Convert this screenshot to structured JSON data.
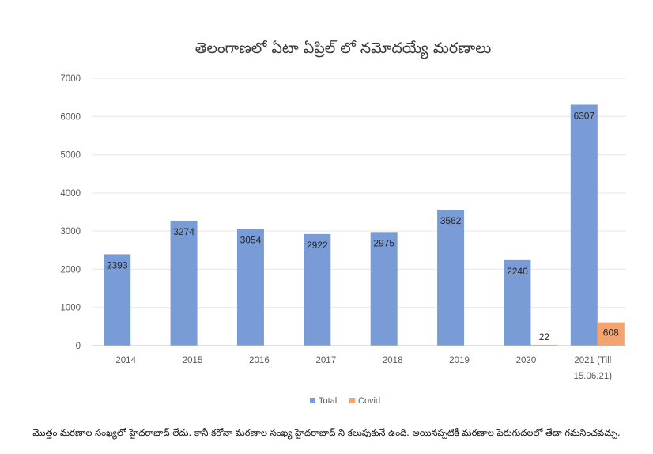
{
  "chart_data": {
    "type": "bar",
    "title": "తెలంగాణలో ఏటా ఏప్రిల్ లో నమోదయ్యే మరణాలు",
    "categories": [
      "2014",
      "2015",
      "2016",
      "2017",
      "2018",
      "2019",
      "2020",
      "2021 (Till 15.06.21)"
    ],
    "category_lines": [
      [
        "2014"
      ],
      [
        "2015"
      ],
      [
        "2016"
      ],
      [
        "2017"
      ],
      [
        "2018"
      ],
      [
        "2019"
      ],
      [
        "2020"
      ],
      [
        "2021 (Till",
        "15.06.21)"
      ]
    ],
    "series": [
      {
        "name": "Total",
        "color": "#7a9cd6",
        "values": [
          2393,
          3274,
          3054,
          2922,
          2975,
          3562,
          2240,
          6307
        ]
      },
      {
        "name": "Covid",
        "color": "#f4a46e",
        "values": [
          null,
          null,
          null,
          null,
          null,
          null,
          22,
          608
        ]
      }
    ],
    "ylim": [
      0,
      7000
    ],
    "yticks": [
      0,
      1000,
      2000,
      3000,
      4000,
      5000,
      6000,
      7000
    ],
    "grid": true,
    "legend_position": "bottom",
    "xlabel": "",
    "ylabel": ""
  },
  "footnote": "మొత్తం మరణాల సంఖ్యలో హైదరాబాద్ లేదు. కానీ కరోనా మరణాల సంఖ్య హైదరాబాద్ ని కలుపుకునే ఉంది. అయినప్పటికీ మరణాల పెరుగుదలలో తేడా గమనించవచ్చు."
}
